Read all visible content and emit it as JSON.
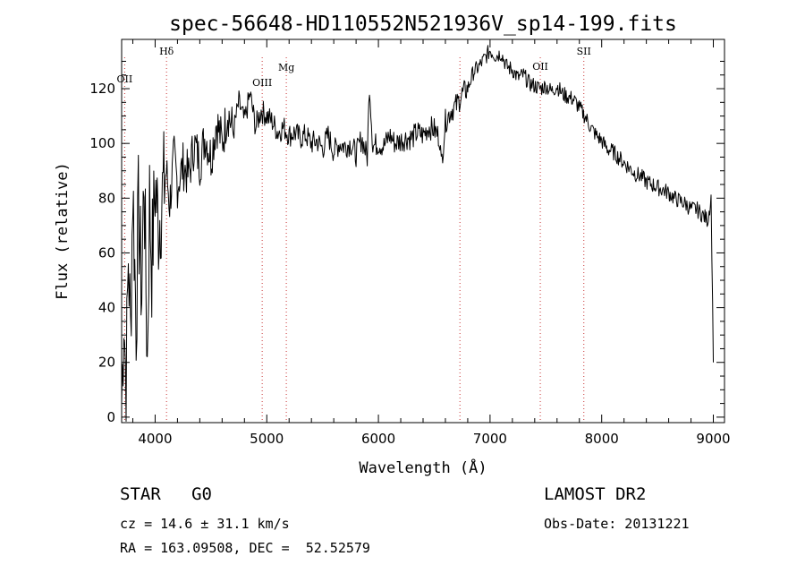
{
  "chart_data": {
    "type": "line",
    "title": "spec-56648-HD110552N521936V_sp14-199.fits",
    "xlabel": "Wavelength (Å)",
    "ylabel": "Flux (relative)",
    "xlim": [
      3700,
      9100
    ],
    "ylim": [
      -2,
      138
    ],
    "xticks": [
      4000,
      5000,
      6000,
      7000,
      8000,
      9000
    ],
    "yticks": [
      0,
      20,
      40,
      60,
      80,
      100,
      120
    ],
    "grid": false,
    "series": [
      {
        "x": [
          3700,
          3720,
          3740,
          3760,
          3780,
          3800,
          3830,
          3850,
          3880,
          3900,
          3930,
          3950,
          3970,
          4000,
          4030,
          4060,
          4100,
          4130,
          4170,
          4200,
          4250,
          4300,
          4350,
          4400,
          4450,
          4500,
          4550,
          4600,
          4650,
          4700,
          4750,
          4800,
          4850,
          4900,
          4950,
          5000,
          5050,
          5100,
          5150,
          5200,
          5250,
          5300,
          5350,
          5400,
          5450,
          5500,
          5550,
          5600,
          5650,
          5700,
          5750,
          5800,
          5850,
          5900,
          5920,
          5950,
          6000,
          6050,
          6100,
          6150,
          6200,
          6250,
          6300,
          6350,
          6400,
          6450,
          6500,
          6550,
          6563,
          6600,
          6650,
          6700,
          6750,
          6800,
          6850,
          6900,
          6950,
          7000,
          7050,
          7100,
          7150,
          7200,
          7250,
          7300,
          7350,
          7400,
          7450,
          7500,
          7550,
          7600,
          7650,
          7700,
          7750,
          7800,
          7850,
          7900,
          7950,
          8000,
          8050,
          8100,
          8150,
          8200,
          8250,
          8300,
          8350,
          8400,
          8450,
          8500,
          8550,
          8600,
          8650,
          8700,
          8750,
          8800,
          8850,
          8900,
          8950,
          8980,
          9000
        ],
        "y": [
          5,
          40,
          10,
          60,
          30,
          85,
          35,
          75,
          45,
          90,
          20,
          80,
          55,
          85,
          70,
          80,
          90,
          78,
          95,
          85,
          92,
          88,
          100,
          93,
          103,
          95,
          108,
          100,
          112,
          104,
          115,
          108,
          118,
          106,
          112,
          110,
          108,
          104,
          106,
          103,
          104,
          102,
          103,
          100,
          101,
          98,
          103,
          97,
          100,
          99,
          100,
          96,
          102,
          95,
          122,
          99,
          100,
          99,
          103,
          100,
          101,
          102,
          102,
          104,
          103,
          106,
          105,
          102,
          92,
          108,
          112,
          114,
          118,
          120,
          126,
          128,
          131,
          134,
          132,
          133,
          128,
          127,
          124,
          125,
          122,
          121,
          120,
          121,
          119,
          121,
          118,
          117,
          116,
          113,
          110,
          106,
          103,
          101,
          98,
          97,
          95,
          93,
          91,
          89,
          88,
          86,
          85,
          84,
          83,
          82,
          80,
          79,
          78,
          76,
          76,
          74,
          72,
          80,
          20
        ]
      }
    ],
    "lines": [
      {
        "label": "OII",
        "x": 3727
      },
      {
        "label": "Hδ",
        "x": 4102
      },
      {
        "label": "OIII",
        "x": 4959
      },
      {
        "label": "Mg",
        "x": 5175
      },
      {
        "label": "",
        "x": 6730
      },
      {
        "label": "OII",
        "x": 7450
      },
      {
        "label": "SII",
        "x": 7840
      }
    ]
  },
  "info": {
    "classification": "STAR   G0",
    "redshift": "cz = 14.6 ± 31.1 km/s",
    "coords": "RA = 163.09508, DEC =  52.52579",
    "survey": "LAMOST DR2",
    "obs_date": "Obs-Date: 20131221"
  }
}
